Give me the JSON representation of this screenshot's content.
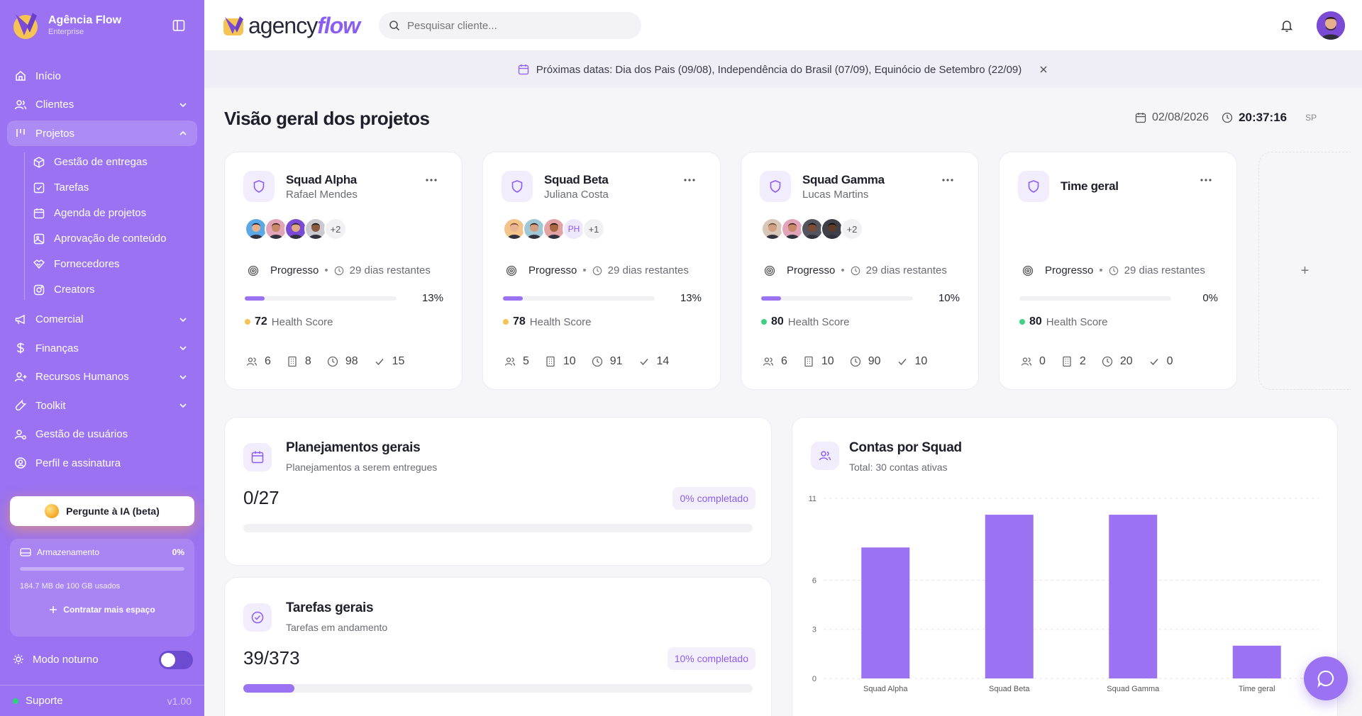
{
  "sidebar": {
    "brand_name": "Agência Flow",
    "brand_plan": "Enterprise",
    "nav": {
      "inicio": "Início",
      "clientes": "Clientes",
      "projetos": "Projetos",
      "comercial": "Comercial",
      "financas": "Finanças",
      "rh": "Recursos Humanos",
      "toolkit": "Toolkit",
      "usuarios": "Gestão de usuários",
      "perfil": "Perfil e assinatura"
    },
    "projetos_sub": {
      "entregas": "Gestão de entregas",
      "tarefas": "Tarefas",
      "agenda": "Agenda de projetos",
      "aprovacao": "Aprovação de conteúdo",
      "fornecedores": "Fornecedores",
      "creators": "Creators"
    },
    "ai_button": "Pergunte à IA (beta)",
    "storage": {
      "label": "Armazenamento",
      "percent": "0%",
      "used": "184.7 MB de 100 GB usados",
      "more": "Contratar mais espaço"
    },
    "night_mode": "Modo noturno",
    "support": "Suporte",
    "version": "v1.00"
  },
  "header": {
    "logo_a": "agency",
    "logo_b": "flow",
    "search_placeholder": "Pesquisar cliente..."
  },
  "announcement": "Próximas datas: Dia dos Pais (09/08), Independência do Brasil (07/09), Equinócio de Setembro (22/09)",
  "page_title": "Visão geral dos projetos",
  "date": "02/08/2026",
  "time": "20:37:16",
  "timezone": "SP",
  "squads": [
    {
      "name": "Squad Alpha",
      "lead": "Rafael Mendes",
      "extra": "+2",
      "progress_label": "Progresso",
      "days": "29 dias restantes",
      "pct": "13%",
      "fill": 0.13,
      "score": "72",
      "score_label": "Health Score",
      "score_color": "#f6c453",
      "people": "6",
      "clients": "8",
      "hours": "98",
      "done": "15"
    },
    {
      "name": "Squad Beta",
      "lead": "Juliana Costa",
      "ph": "PH",
      "extra": "+1",
      "progress_label": "Progresso",
      "days": "29 dias restantes",
      "pct": "13%",
      "fill": 0.13,
      "score": "78",
      "score_label": "Health Score",
      "score_color": "#f6c453",
      "people": "5",
      "clients": "10",
      "hours": "91",
      "done": "14"
    },
    {
      "name": "Squad Gamma",
      "lead": "Lucas Martins",
      "extra": "+2",
      "progress_label": "Progresso",
      "days": "29 dias restantes",
      "pct": "10%",
      "fill": 0.1,
      "score": "80",
      "score_label": "Health Score",
      "score_color": "#3fd17f",
      "people": "6",
      "clients": "10",
      "hours": "90",
      "done": "10"
    },
    {
      "name": "Time geral",
      "lead": "",
      "extra": "",
      "progress_label": "Progresso",
      "days": "29 dias restantes",
      "pct": "0%",
      "fill": 0,
      "score": "80",
      "score_label": "Health Score",
      "score_color": "#3fd17f",
      "people": "0",
      "clients": "2",
      "hours": "20",
      "done": "0"
    }
  ],
  "add_card": "+",
  "planejamentos": {
    "title": "Planejamentos gerais",
    "subtitle": "Planejamentos a serem entregues",
    "count": "0/27",
    "badge": "0% completado",
    "fill": 0
  },
  "tarefas": {
    "title": "Tarefas gerais",
    "subtitle": "Tarefas em andamento",
    "count": "39/373",
    "badge": "10% completado",
    "fill": 0.1
  },
  "contas": {
    "title": "Contas por Squad",
    "subtitle": "Total: 30 contas ativas"
  },
  "chart_data": {
    "type": "bar",
    "title": "Contas por Squad",
    "categories": [
      "Squad Alpha",
      "Squad Beta",
      "Squad Gamma",
      "Time geral"
    ],
    "values": [
      8,
      10,
      10,
      2
    ],
    "yticks": [
      0,
      3,
      6,
      11
    ],
    "ylim": [
      0,
      11
    ],
    "grid": true,
    "color": "#9a72f2"
  },
  "colors": {
    "accent": "#9a72f2",
    "sidebar": "#9a72f2"
  }
}
